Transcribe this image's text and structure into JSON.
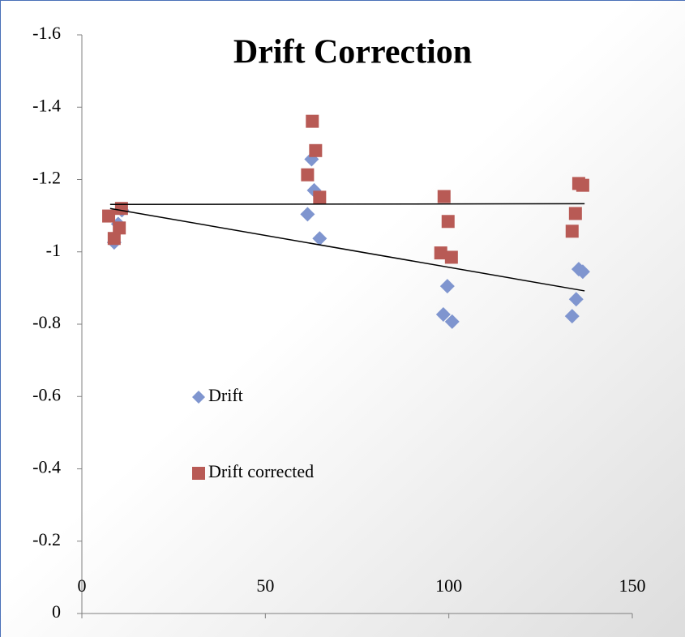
{
  "chart_data": {
    "type": "scatter",
    "title": "Drift Correction",
    "xlim": [
      0,
      150
    ],
    "xticks": [
      0,
      50,
      100,
      150
    ],
    "ylim": [
      0,
      -1.6
    ],
    "yticks": [
      0,
      -0.2,
      -0.4,
      -0.6,
      -0.8,
      -1,
      -1.2,
      -1.4,
      -1.6
    ],
    "legend_position": "center-left",
    "series": [
      {
        "name": "Drift",
        "color": "#7f95cf",
        "marker": "diamond",
        "x": [
          8.8,
          9.9,
          10.9,
          62.6,
          63.3,
          61.5,
          64.8,
          98.5,
          99.6,
          100.9,
          133.6,
          134.7,
          135.4,
          136.5
        ],
        "values": [
          -1.026,
          -1.077,
          -1.115,
          -1.256,
          -1.17,
          -1.104,
          -1.037,
          -0.827,
          -0.905,
          -0.807,
          -0.822,
          -0.869,
          -0.952,
          -0.945
        ],
        "trendline": {
          "x": [
            7.7,
            137
          ],
          "values": [
            -1.12,
            -0.892
          ]
        }
      },
      {
        "name": "Drift corrected",
        "color": "#b85a55",
        "marker": "square",
        "x": [
          7.3,
          8.8,
          10.2,
          10.8,
          62.8,
          63.7,
          61.5,
          64.8,
          98.7,
          99.8,
          97.8,
          100.7,
          135.4,
          136.5,
          134.5,
          133.6
        ],
        "values": [
          -1.099,
          -1.037,
          -1.066,
          -1.12,
          -1.361,
          -1.28,
          -1.213,
          -1.151,
          -1.153,
          -1.084,
          -0.997,
          -0.985,
          -1.189,
          -1.184,
          -1.106,
          -1.057
        ],
        "trendline": {
          "x": [
            7.7,
            137
          ],
          "values": [
            -1.131,
            -1.133
          ]
        }
      }
    ]
  }
}
